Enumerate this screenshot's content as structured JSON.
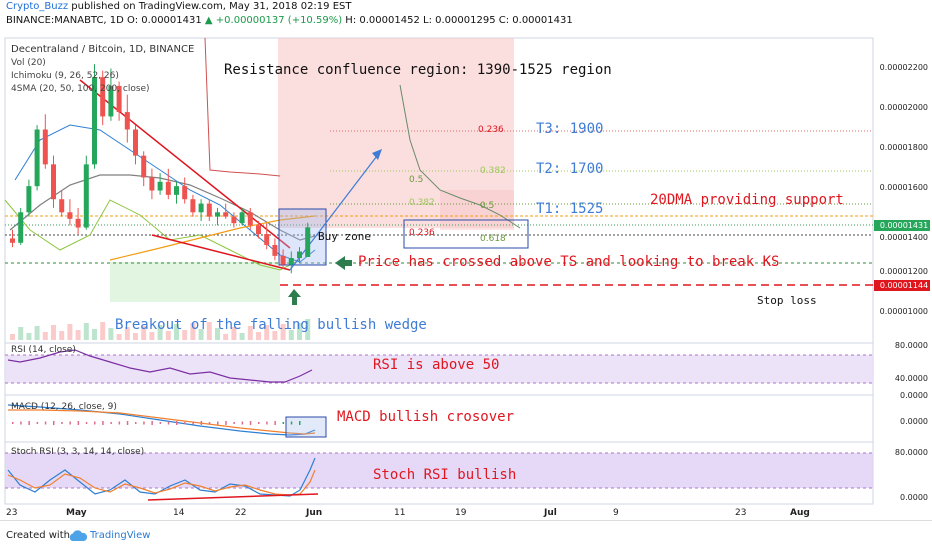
{
  "header": {
    "author": "Crypto_Buzz",
    "published": "published on TradingView.com, May 31, 2018 02:19 EST",
    "symbol_line": "BINANCE:MANABTC, 1D",
    "open": "O: 0.00001431",
    "change": "▲ +0.00000137 (+10.59%)",
    "high": "H: 0.00001452",
    "low": "L: 0.00001295",
    "close": "C: 0.00001431"
  },
  "overlays": {
    "title": "Decentraland / Bitcoin, 1D, BINANCE",
    "vol": "Vol (20)",
    "ichimoku": "Ichimoku (9, 26, 52, 26)",
    "sma": "4SMA (20, 50, 100, 200, close)"
  },
  "price_axis": [
    "0.00002200",
    "0.00002000",
    "0.00001800",
    "0.00001600",
    "0.00001400",
    "0.00001200",
    "0.00001000"
  ],
  "price_tags": {
    "current": "0.00001431",
    "stop": "0.00001144"
  },
  "fib": {
    "r0236a": "0.236",
    "r0382a": "0.382",
    "r05a": "0.5",
    "r0382b": "0.382",
    "r05b": "0.5",
    "r0236b": "0.236",
    "r0618": "0.618"
  },
  "annotations": {
    "resistance": "Resistance confluence region: 1390-1525 region",
    "t3": "T3: 1900",
    "t2": "T2: 1700",
    "t1": "T1: 1525",
    "dma": "20DMA providing support",
    "buy_zone": "Buy zone",
    "ts_ks": "Price has crossed above TS and looking to break KS",
    "stop_loss": "Stop loss",
    "wedge": "Breakout of the falling bullish wedge",
    "rsi": "RSI is above 50",
    "macd": "MACD bullish crosover",
    "stoch": "Stoch RSI bullish"
  },
  "rsi": {
    "label": "RSI (14, close)",
    "axis": [
      "80.0000",
      "40.0000"
    ]
  },
  "macd": {
    "label": "MACD (12, 26, close, 9)",
    "axis": [
      "0.0000",
      "0.0000"
    ]
  },
  "stoch": {
    "label": "Stoch RSI (3, 3, 14, 14, close)",
    "axis": [
      "80.0000",
      "0.0000"
    ]
  },
  "x_axis": [
    "23",
    "May",
    "14",
    "22",
    "Jun",
    "11",
    "19",
    "Jul",
    "9",
    "23",
    "Aug"
  ],
  "footer": {
    "created": "Created with",
    "brand": "TradingView"
  },
  "colors": {
    "up": "#26a65b",
    "down": "#ef5350",
    "annotation_red": "#e0161f",
    "annotation_blue": "#3f7cd6",
    "cloud": "#f8c8c8",
    "rsi_band": "#e8dcf8"
  },
  "chart_data": {
    "type": "candlestick",
    "symbol": "MANA/BTC",
    "interval": "1D",
    "candles": [
      {
        "o": 1380,
        "h": 1420,
        "l": 1340,
        "c": 1360
      },
      {
        "o": 1360,
        "h": 1520,
        "l": 1350,
        "c": 1500
      },
      {
        "o": 1500,
        "h": 1650,
        "l": 1480,
        "c": 1620
      },
      {
        "o": 1620,
        "h": 1900,
        "l": 1600,
        "c": 1880
      },
      {
        "o": 1880,
        "h": 1950,
        "l": 1700,
        "c": 1720
      },
      {
        "o": 1720,
        "h": 1760,
        "l": 1520,
        "c": 1560
      },
      {
        "o": 1560,
        "h": 1600,
        "l": 1480,
        "c": 1500
      },
      {
        "o": 1500,
        "h": 1560,
        "l": 1440,
        "c": 1470
      },
      {
        "o": 1470,
        "h": 1520,
        "l": 1400,
        "c": 1430
      },
      {
        "o": 1430,
        "h": 1760,
        "l": 1420,
        "c": 1720
      },
      {
        "o": 1720,
        "h": 2180,
        "l": 1700,
        "c": 2120
      },
      {
        "o": 2120,
        "h": 2150,
        "l": 1900,
        "c": 1940
      },
      {
        "o": 1940,
        "h": 2160,
        "l": 1920,
        "c": 2080
      },
      {
        "o": 2080,
        "h": 2100,
        "l": 1920,
        "c": 1960
      },
      {
        "o": 1960,
        "h": 2040,
        "l": 1820,
        "c": 1880
      },
      {
        "o": 1880,
        "h": 1900,
        "l": 1720,
        "c": 1760
      },
      {
        "o": 1760,
        "h": 1780,
        "l": 1620,
        "c": 1660
      },
      {
        "o": 1660,
        "h": 1700,
        "l": 1560,
        "c": 1600
      },
      {
        "o": 1600,
        "h": 1680,
        "l": 1580,
        "c": 1640
      },
      {
        "o": 1640,
        "h": 1700,
        "l": 1560,
        "c": 1580
      },
      {
        "o": 1580,
        "h": 1640,
        "l": 1540,
        "c": 1620
      },
      {
        "o": 1620,
        "h": 1660,
        "l": 1540,
        "c": 1560
      },
      {
        "o": 1560,
        "h": 1580,
        "l": 1480,
        "c": 1500
      },
      {
        "o": 1500,
        "h": 1560,
        "l": 1460,
        "c": 1540
      },
      {
        "o": 1540,
        "h": 1560,
        "l": 1460,
        "c": 1480
      },
      {
        "o": 1480,
        "h": 1520,
        "l": 1440,
        "c": 1500
      },
      {
        "o": 1500,
        "h": 1540,
        "l": 1470,
        "c": 1480
      },
      {
        "o": 1480,
        "h": 1500,
        "l": 1430,
        "c": 1450
      },
      {
        "o": 1450,
        "h": 1520,
        "l": 1440,
        "c": 1500
      },
      {
        "o": 1500,
        "h": 1520,
        "l": 1420,
        "c": 1440
      },
      {
        "o": 1440,
        "h": 1460,
        "l": 1380,
        "c": 1400
      },
      {
        "o": 1400,
        "h": 1450,
        "l": 1330,
        "c": 1350
      },
      {
        "o": 1350,
        "h": 1380,
        "l": 1280,
        "c": 1300
      },
      {
        "o": 1300,
        "h": 1330,
        "l": 1240,
        "c": 1260
      },
      {
        "o": 1260,
        "h": 1320,
        "l": 1220,
        "c": 1290
      },
      {
        "o": 1290,
        "h": 1340,
        "l": 1270,
        "c": 1320
      },
      {
        "o": 1295,
        "h": 1452,
        "l": 1295,
        "c": 1431
      }
    ],
    "levels": {
      "current": 1431,
      "stop_loss": 1144,
      "kijun": 1255
    },
    "ylim": [
      900,
      2300
    ]
  }
}
